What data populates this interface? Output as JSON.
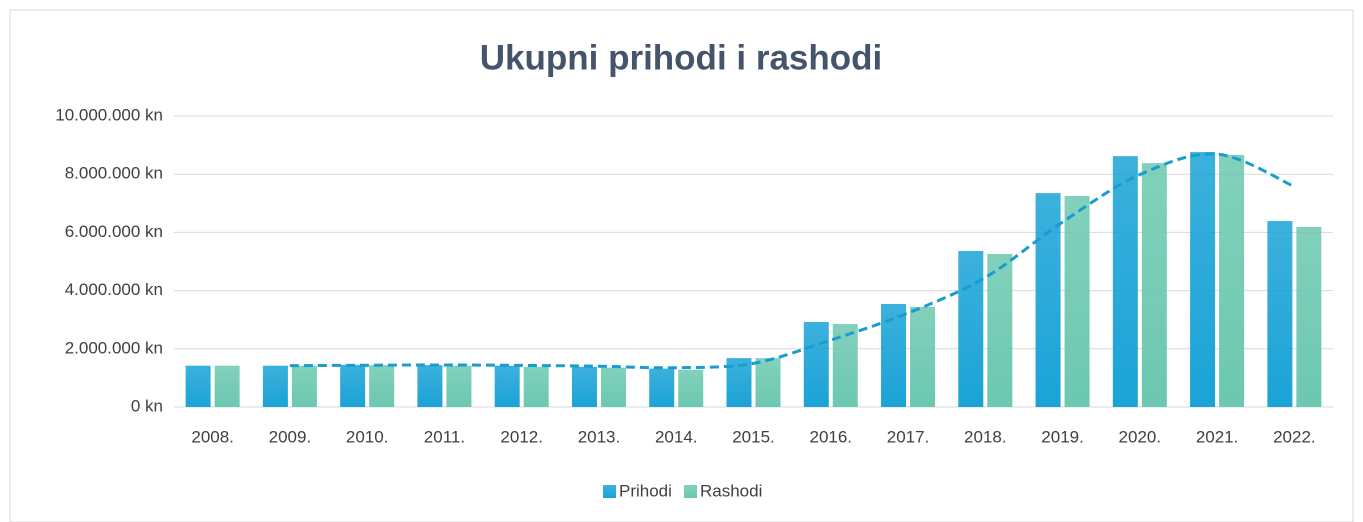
{
  "chart_data": {
    "type": "bar",
    "title": "Ukupni prihodi i rashodi",
    "categories": [
      "2008.",
      "2009.",
      "2010.",
      "2011.",
      "2012.",
      "2013.",
      "2014.",
      "2015.",
      "2016.",
      "2017.",
      "2018.",
      "2019.",
      "2020.",
      "2021.",
      "2022."
    ],
    "series": [
      {
        "name": "Prihodi",
        "color": "#1aa3d6",
        "values": [
          1420000,
          1420000,
          1450000,
          1440000,
          1420000,
          1380000,
          1320000,
          1680000,
          2920000,
          3540000,
          5360000,
          7350000,
          8620000,
          8760000,
          6390000
        ]
      },
      {
        "name": "Rashodi",
        "color": "#6cc8b0",
        "values": [
          1420000,
          1420000,
          1440000,
          1420000,
          1380000,
          1350000,
          1280000,
          1680000,
          2850000,
          3440000,
          5260000,
          7250000,
          8380000,
          8660000,
          6190000
        ]
      }
    ],
    "trendline": {
      "color": "#1a9ccc",
      "values": [
        null,
        1420000,
        1435000,
        1445000,
        1430000,
        1400000,
        1350000,
        1500000,
        2300000,
        3230000,
        4450000,
        6355000,
        7985000,
        8690000,
        7575000
      ]
    },
    "ylim": [
      0,
      10000000
    ],
    "yticks": [
      {
        "value": 0,
        "label": "0 kn"
      },
      {
        "value": 2000000,
        "label": "2.000.000 kn"
      },
      {
        "value": 4000000,
        "label": "4.000.000 kn"
      },
      {
        "value": 6000000,
        "label": "6.000.000 kn"
      },
      {
        "value": 8000000,
        "label": "8.000.000 kn"
      },
      {
        "value": 10000000,
        "label": "10.000.000 kn"
      }
    ],
    "grid": true,
    "legend": "bottom"
  }
}
